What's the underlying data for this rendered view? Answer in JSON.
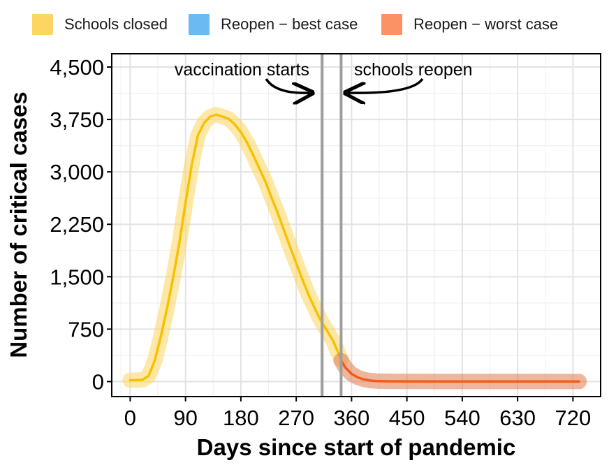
{
  "chart_data": {
    "type": "line",
    "xlabel": "Days since start of pandemic",
    "ylabel": "Number of critical cases",
    "xlim": [
      -30,
      765
    ],
    "ylim": [
      -215,
      4690
    ],
    "x_ticks": [
      0,
      90,
      180,
      270,
      360,
      450,
      540,
      630,
      720
    ],
    "x_tick_labels": [
      "0",
      "90",
      "180",
      "270",
      "360",
      "450",
      "540",
      "630",
      "720"
    ],
    "y_ticks": [
      0,
      750,
      1500,
      2250,
      3000,
      3750,
      4500
    ],
    "y_tick_labels": [
      "0",
      "750",
      "1,500",
      "2,250",
      "3,000",
      "3,750",
      "4,500"
    ],
    "grid": true,
    "legend_position": "top",
    "legend": [
      {
        "label": "Schools closed",
        "color": "#fcd660"
      },
      {
        "label": "Reopen − best case",
        "color": "#6cbaf2"
      },
      {
        "label": "Reopen − worst case",
        "color": "#fb9265"
      }
    ],
    "vertical_lines": [
      {
        "x": 312,
        "label": "vaccination starts"
      },
      {
        "x": 343,
        "label": "schools reopen"
      }
    ],
    "series": [
      {
        "name": "Schools closed",
        "color": "#f8c100",
        "band_color": "#fcd660",
        "x": [
          0,
          10,
          20,
          30,
          40,
          50,
          60,
          70,
          80,
          90,
          100,
          110,
          120,
          130,
          140,
          150,
          160,
          170,
          180,
          190,
          200,
          210,
          220,
          230,
          240,
          250,
          260,
          270,
          280,
          290,
          300,
          310,
          320,
          330,
          343
        ],
        "y": [
          20,
          20,
          25,
          80,
          300,
          650,
          1050,
          1500,
          1990,
          2560,
          3100,
          3520,
          3700,
          3790,
          3820,
          3790,
          3760,
          3680,
          3570,
          3420,
          3240,
          3050,
          2860,
          2630,
          2410,
          2170,
          1930,
          1690,
          1460,
          1240,
          1050,
          870,
          730,
          580,
          320
        ]
      },
      {
        "name": "Reopen − worst case",
        "color": "#f65a14",
        "band_color": "#e07a4a",
        "x": [
          343,
          350,
          360,
          370,
          380,
          390,
          400,
          420,
          450,
          500,
          540,
          600,
          630,
          680,
          720,
          730
        ],
        "y": [
          300,
          200,
          110,
          60,
          30,
          15,
          8,
          4,
          2,
          1,
          1,
          1,
          1,
          1,
          1,
          1
        ]
      }
    ]
  }
}
